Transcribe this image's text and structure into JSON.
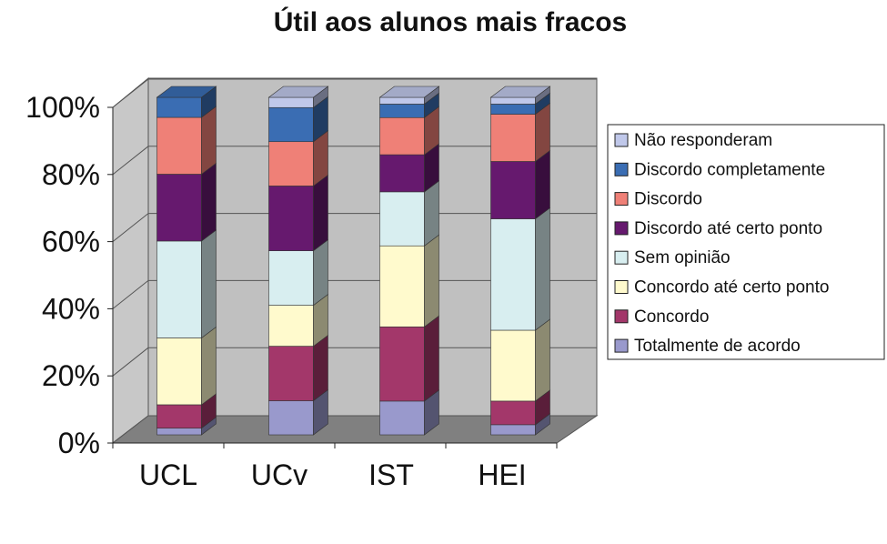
{
  "chart_data": {
    "type": "bar",
    "stacked": true,
    "percent": true,
    "three_d": true,
    "title": "Útil aos alunos mais fracos",
    "categories": [
      "UCL",
      "UCv",
      "IST",
      "HEI"
    ],
    "y_ticks": [
      "0%",
      "20%",
      "40%",
      "60%",
      "80%",
      "100%"
    ],
    "ylim": [
      0,
      100
    ],
    "legend_position": "right",
    "series": [
      {
        "name": "Totalmente de acordo",
        "color": "#9999cc",
        "values": [
          2,
          10,
          10,
          3
        ]
      },
      {
        "name": "Concordo",
        "color": "#a3376a",
        "values": [
          7,
          16,
          22,
          7
        ]
      },
      {
        "name": "Concordo até certo ponto",
        "color": "#fffacd",
        "values": [
          20,
          12,
          24,
          21
        ]
      },
      {
        "name": "Sem opinião",
        "color": "#d8eef0",
        "values": [
          29,
          16,
          16,
          33
        ]
      },
      {
        "name": "Discordo até certo ponto",
        "color": "#66196e",
        "values": [
          20,
          19,
          11,
          17
        ]
      },
      {
        "name": "Discordo",
        "color": "#ef8077",
        "values": [
          17,
          13,
          11,
          14
        ]
      },
      {
        "name": "Discordo completamente",
        "color": "#3a6db3",
        "values": [
          6,
          10,
          4,
          3
        ]
      },
      {
        "name": "Não responderam",
        "color": "#c0c8ea",
        "values": [
          0,
          3,
          2,
          2
        ]
      }
    ]
  }
}
